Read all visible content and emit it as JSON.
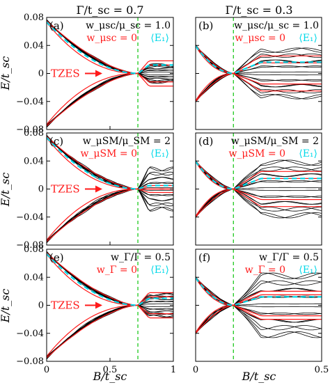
{
  "colors": {
    "black_curve": "#000000",
    "red_curve": "#ff1a1a",
    "avg_curve": "#00d8e8",
    "dashed_line": "#2ecc2e"
  },
  "column_titles": [
    "Γ/t_sc = 0.7",
    "Γ/t_sc = 0.3"
  ],
  "axes": {
    "ylabel": "E/t_sc",
    "xlabel": "B/t_sc",
    "ytick_labels": [
      "0.08",
      "0.04",
      "0",
      "−0.04",
      "−0.08"
    ],
    "left_xtick_labels": [
      "0",
      "0.5",
      "1"
    ],
    "right_xtick_labels": [
      "0",
      "0.5"
    ]
  },
  "chart_data": [
    {
      "type": "line",
      "panel": "(a)",
      "row": 0,
      "col": 0,
      "annotation_1": "w_μsc/μ_sc = 1.0",
      "annotation_2": "w_μsc = 0",
      "annotation_3": "⟨E₁⟩",
      "marker": "TZES",
      "ylim": [
        -0.08,
        0.08
      ],
      "xlim": [
        0,
        1
      ],
      "vline_x": 0.72,
      "E0": 0.075,
      "spread": 0.012,
      "red_levels": [
        0.012,
        0.018
      ],
      "avg_level": 0.012
    },
    {
      "type": "line",
      "panel": "(b)",
      "row": 0,
      "col": 1,
      "annotation_1": "w_μsc/μ_sc = 1.0",
      "annotation_2": "w_μsc = 0",
      "annotation_3": "⟨E₁⟩",
      "ylim": [
        -0.08,
        0.08
      ],
      "xlim": [
        0,
        0.5
      ],
      "vline_x": 0.15,
      "E0": 0.04,
      "spread": 0.035,
      "red_levels": [
        0.015,
        0.025
      ],
      "avg_level": 0.016
    },
    {
      "type": "line",
      "panel": "(c)",
      "row": 1,
      "col": 0,
      "annotation_1": "w_μSM/μ_SM = 2",
      "annotation_2": "w_μSM = 0",
      "annotation_3": "⟨E₁⟩",
      "marker": "TZES",
      "ylim": [
        -0.08,
        0.08
      ],
      "xlim": [
        0,
        1
      ],
      "vline_x": 0.72,
      "E0": 0.075,
      "spread": 0.03,
      "red_levels": [
        0.0,
        0.005
      ],
      "avg_level": 0.005
    },
    {
      "type": "line",
      "panel": "(d)",
      "row": 1,
      "col": 1,
      "annotation_1": "w_μSM/μ_SM = 2",
      "annotation_2": "w_μSM = 0",
      "annotation_3": "⟨E₁⟩",
      "ylim": [
        -0.08,
        0.08
      ],
      "xlim": [
        0,
        0.5
      ],
      "vline_x": 0.15,
      "E0": 0.04,
      "spread": 0.04,
      "red_levels": [
        0.015,
        0.025
      ],
      "avg_level": 0.015
    },
    {
      "type": "line",
      "panel": "(e)",
      "row": 2,
      "col": 0,
      "annotation_1": "w_Γ/Γ = 0.5",
      "annotation_2": "w_Γ = 0",
      "annotation_3": "⟨E₁⟩",
      "marker": "TZES",
      "ylim": [
        -0.08,
        0.08
      ],
      "xlim": [
        0,
        1
      ],
      "vline_x": 0.72,
      "E0": 0.075,
      "spread": 0.015,
      "red_levels": [
        0.012,
        0.018
      ],
      "avg_level": 0.01
    },
    {
      "type": "line",
      "panel": "(f)",
      "row": 2,
      "col": 1,
      "annotation_1": "w_Γ/Γ = 0.5",
      "annotation_2": "w_Γ = 0",
      "annotation_3": "⟨E₁⟩",
      "ylim": [
        -0.08,
        0.08
      ],
      "xlim": [
        0,
        0.5
      ],
      "vline_x": 0.15,
      "E0": 0.04,
      "spread": 0.045,
      "red_levels": [
        0.015,
        0.02
      ],
      "avg_level": 0.012
    }
  ]
}
